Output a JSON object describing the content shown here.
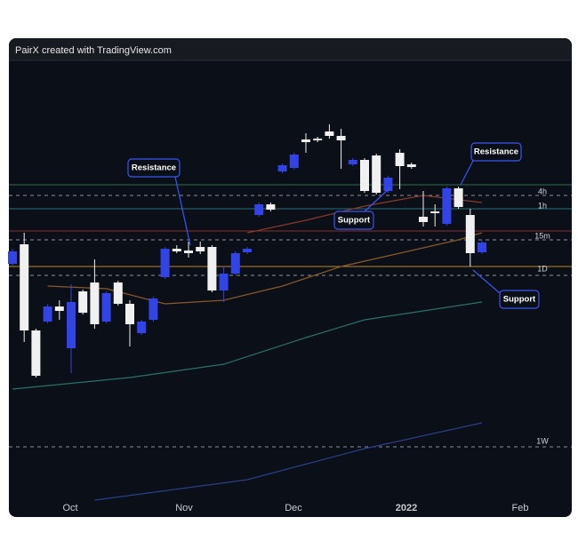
{
  "header": {
    "title": "PairX created with TradingView.com"
  },
  "chart_data": {
    "type": "candlestick",
    "up_color": "#f0f0f0",
    "down_color": "#3344e6",
    "ylim": [
      18,
      532
    ],
    "open": [
      317,
      228,
      177,
      255,
      250,
      260,
      248,
      235,
      270,
      258,
      235,
      238,
      264,
      320,
      317,
      315,
      317,
      273,
      292,
      315,
      320,
      370,
      364,
      414,
      426,
      440,
      442,
      447,
      442,
      420,
      385,
      383,
      400,
      413,
      412,
      350,
      360,
      388,
      367,
      315,
      327
    ],
    "high": [
      320,
      338,
      230,
      258,
      262,
      280,
      274,
      308,
      272,
      284,
      262,
      240,
      266,
      322,
      324,
      328,
      328,
      324,
      300,
      317,
      322,
      372,
      372,
      416,
      428,
      450,
      446,
      460,
      455,
      422,
      422,
      427,
      402,
      432,
      417,
      385,
      370,
      390,
      390,
      365,
      329
    ],
    "low": [
      301,
      215,
      175,
      236,
      240,
      180,
      246,
      230,
      236,
      256,
      210,
      223,
      238,
      286,
      315,
      310,
      314,
      271,
      260,
      290,
      314,
      356,
      362,
      405,
      409,
      428,
      440,
      444,
      410,
      413,
      383,
      381,
      383,
      387,
      410,
      345,
      345,
      346,
      365,
      300,
      314
    ],
    "close": [
      303,
      325,
      228,
      238,
      255,
      208,
      272,
      282,
      238,
      282,
      258,
      225,
      240,
      288,
      320,
      318,
      322,
      322,
      273,
      292,
      316,
      358,
      370,
      407,
      411,
      443,
      444,
      452,
      447,
      415,
      420,
      425,
      385,
      428,
      415,
      356,
      362,
      348,
      388,
      358,
      316
    ],
    "x_labels": [
      "Oct",
      "Nov",
      "Dec",
      "2022",
      "Feb"
    ],
    "levels": [
      {
        "value": 392,
        "color": "#2f6e4c",
        "dashed": false
      },
      {
        "value": 380,
        "color": "#8a8f99",
        "dashed": true
      },
      {
        "value": 365,
        "color": "#2b6f7e",
        "dashed": false
      },
      {
        "value": 340,
        "color": "#8c2b2b",
        "dashed": false
      },
      {
        "value": 330,
        "color": "#8a8f99",
        "dashed": true
      },
      {
        "value": 300,
        "color": "#b8862b",
        "dashed": false
      },
      {
        "value": 290,
        "color": "#8a8f99",
        "dashed": true
      },
      {
        "value": 97,
        "color": "#8a8f99",
        "dashed": true
      }
    ],
    "moving_averages": [
      {
        "color": "#8a5a2a",
        "x": [
          3,
          8,
          13,
          18,
          23,
          28,
          33,
          38,
          40
        ],
        "values": [
          278,
          275,
          258,
          262,
          278,
          300,
          315,
          330,
          338
        ]
      },
      {
        "color": "#2a6f6a",
        "x": [
          0,
          10,
          18,
          25,
          30,
          35,
          40
        ],
        "values": [
          162,
          175,
          190,
          220,
          240,
          250,
          260
        ]
      },
      {
        "color": "#2a3f8a",
        "x": [
          7,
          20,
          30,
          40
        ],
        "values": [
          37,
          60,
          95,
          124
        ]
      },
      {
        "color": "#8a3a2a",
        "x": [
          20,
          25,
          30,
          35,
          40
        ],
        "values": [
          338,
          352,
          368,
          380,
          372
        ]
      }
    ],
    "level_labels": [
      {
        "label": "4h",
        "value": 384
      },
      {
        "label": "1h",
        "value": 368
      },
      {
        "label": "15m",
        "value": 334
      },
      {
        "label": "1D",
        "value": 297
      },
      {
        "label": "1W",
        "value": 103
      }
    ],
    "annotations": [
      "Resistance",
      "Support",
      "Resistance",
      "Support"
    ]
  }
}
